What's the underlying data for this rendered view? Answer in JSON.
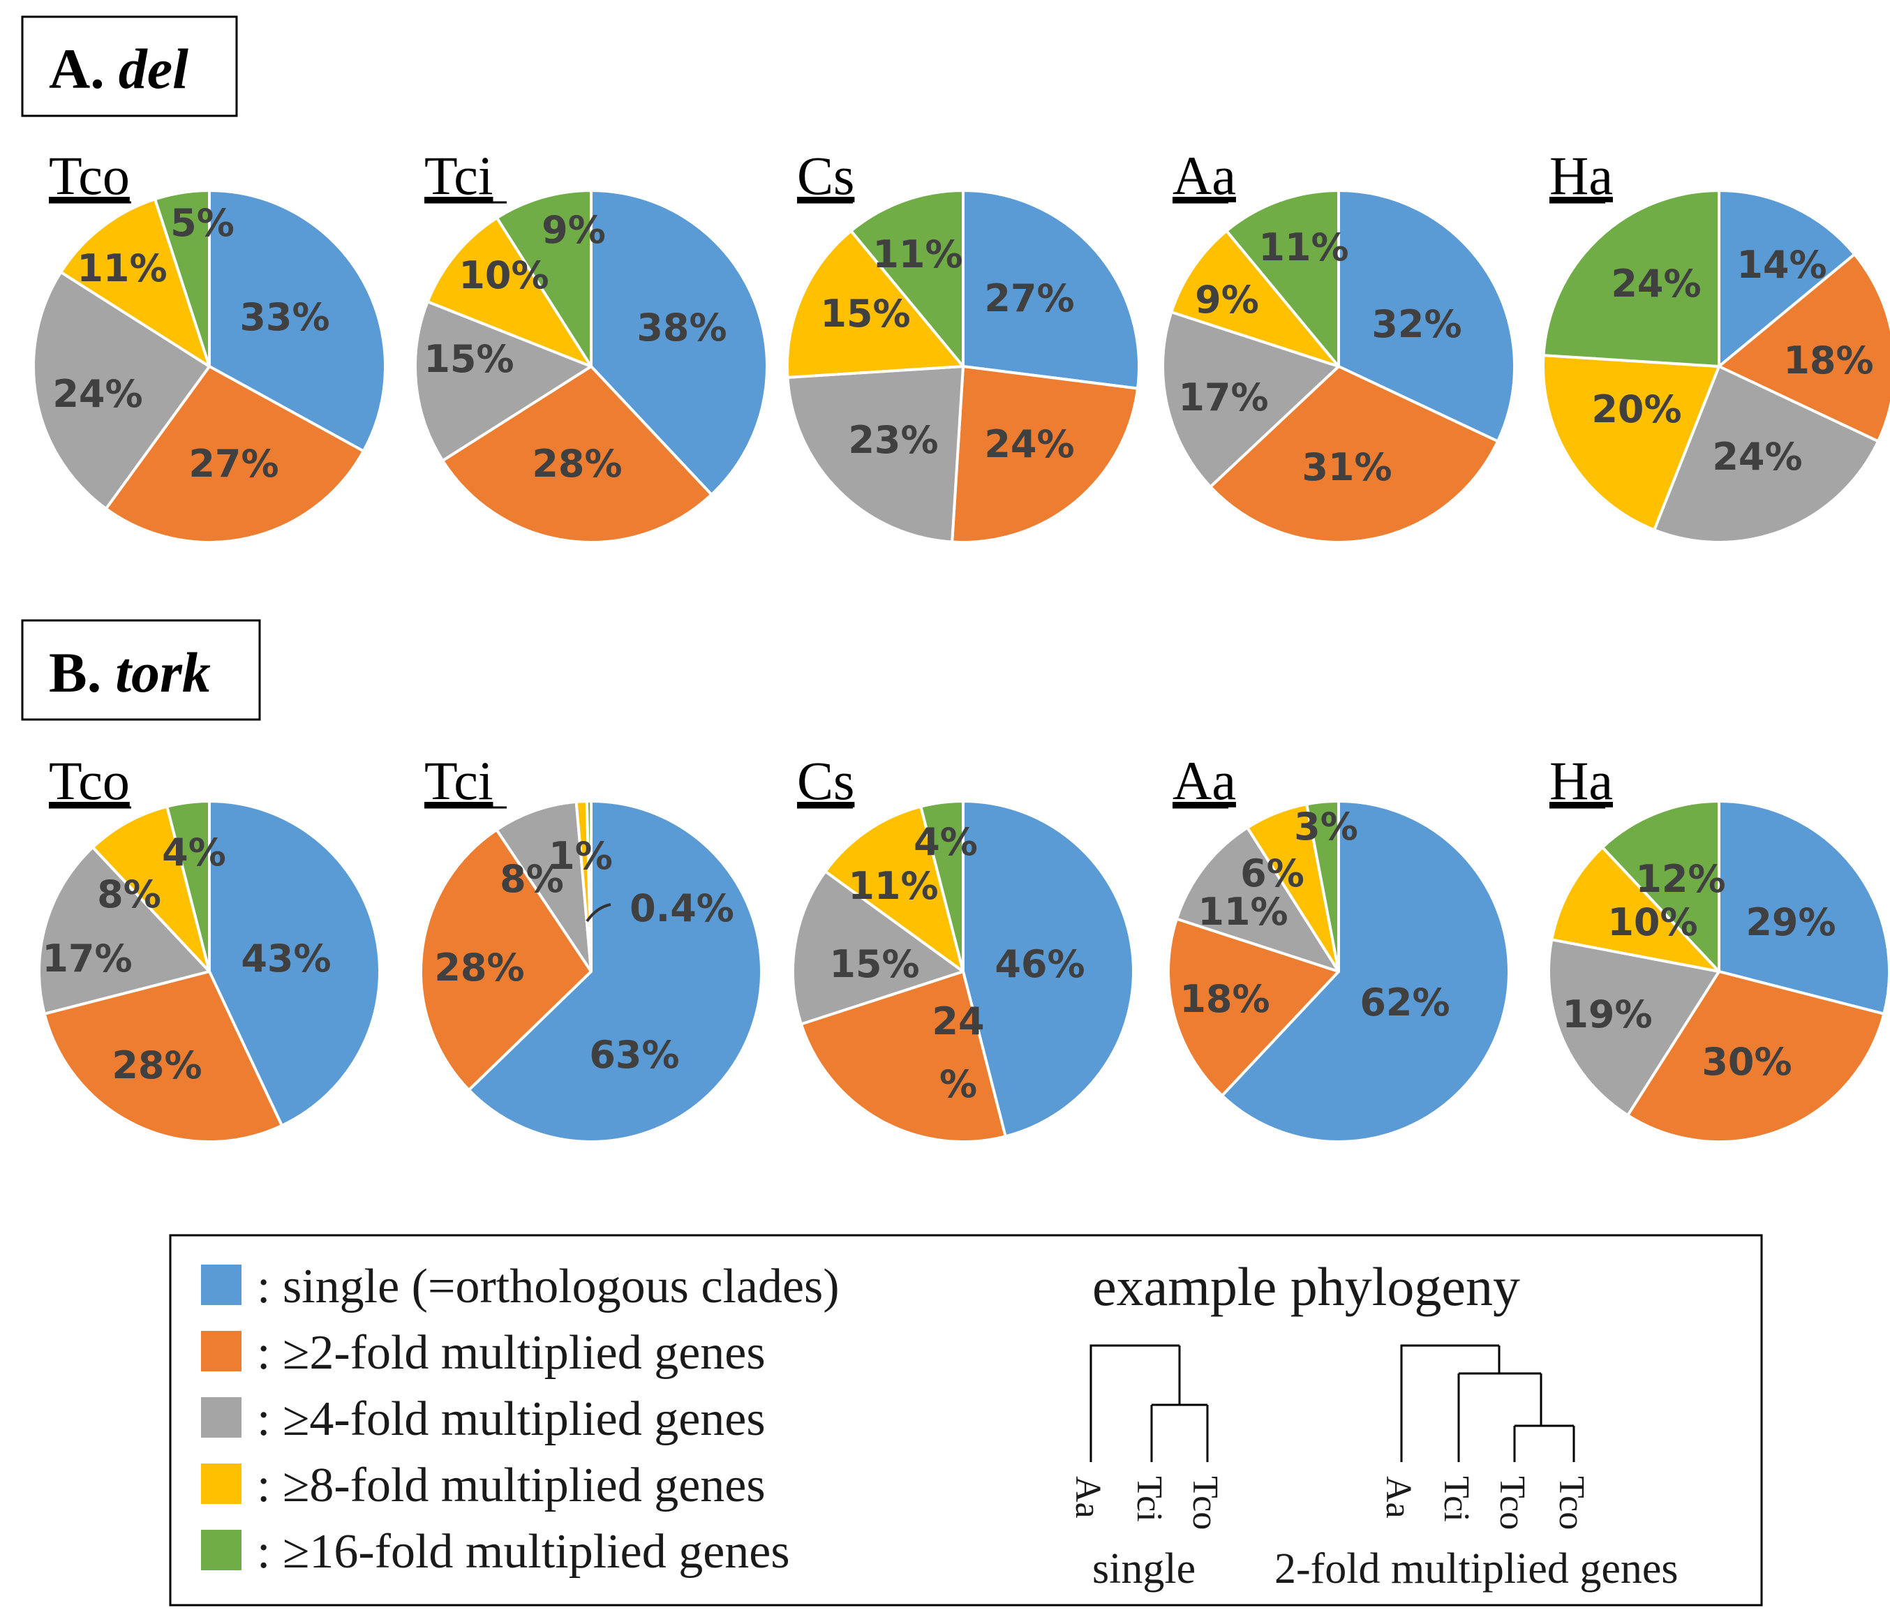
{
  "colors": {
    "single": "#5B9BD5",
    "two_fold": "#ED7D31",
    "four_fold": "#A5A5A5",
    "eight_fold": "#FFC000",
    "sixteen_fold": "#70AD47",
    "label_text": "#404040",
    "slice_border": "#ffffff",
    "frame": "#000000"
  },
  "panels": {
    "del": {
      "letter": "A.",
      "gene": "del"
    },
    "tork": {
      "letter": "B.",
      "gene": "tork"
    }
  },
  "legend": {
    "items": [
      {
        "key": "single",
        "text": ": single (=orthologous clades)"
      },
      {
        "key": "two_fold",
        "text": ": ≥2-fold multiplied genes"
      },
      {
        "key": "four_fold",
        "text": ": ≥4-fold multiplied genes"
      },
      {
        "key": "eight_fold",
        "text": ": ≥8-fold multiplied genes"
      },
      {
        "key": "sixteen_fold",
        "text": ": ≥16-fold multiplied genes"
      }
    ],
    "phylogeny_title": "example phylogeny",
    "tree_single": {
      "leaves": [
        "Aa",
        "Tci",
        "Tco"
      ],
      "caption": "single"
    },
    "tree_multi": {
      "leaves": [
        "Aa",
        "Tci",
        "Tco",
        "Tco"
      ],
      "caption": "2-fold multiplied genes"
    }
  },
  "chart_data": [
    {
      "type": "pie",
      "panel": "del",
      "title": "Tco",
      "categories": [
        "single",
        "≥2-fold",
        "≥4-fold",
        "≥8-fold",
        "≥16-fold"
      ],
      "values": [
        33,
        27,
        24,
        11,
        5
      ],
      "labels": [
        "33%",
        "27%",
        "24%",
        "11%",
        "5%"
      ]
    },
    {
      "type": "pie",
      "panel": "del",
      "title": "Tci",
      "categories": [
        "single",
        "≥2-fold",
        "≥4-fold",
        "≥8-fold",
        "≥16-fold"
      ],
      "values": [
        38,
        28,
        15,
        10,
        9
      ],
      "labels": [
        "38%",
        "28%",
        "15%",
        "10%",
        "9%"
      ]
    },
    {
      "type": "pie",
      "panel": "del",
      "title": "Cs",
      "categories": [
        "single",
        "≥2-fold",
        "≥4-fold",
        "≥8-fold",
        "≥16-fold"
      ],
      "values": [
        27,
        24,
        23,
        15,
        11
      ],
      "labels": [
        "27%",
        "24%",
        "23%",
        "15%",
        "11%"
      ]
    },
    {
      "type": "pie",
      "panel": "del",
      "title": "Aa",
      "categories": [
        "single",
        "≥2-fold",
        "≥4-fold",
        "≥8-fold",
        "≥16-fold"
      ],
      "values": [
        32,
        31,
        17,
        9,
        11
      ],
      "labels": [
        "32%",
        "31%",
        "17%",
        "9%",
        "11%"
      ]
    },
    {
      "type": "pie",
      "panel": "del",
      "title": "Ha",
      "categories": [
        "single",
        "≥2-fold",
        "≥4-fold",
        "≥8-fold",
        "≥16-fold"
      ],
      "values": [
        14,
        18,
        24,
        20,
        24
      ],
      "labels": [
        "14%",
        "18%",
        "24%",
        "20%",
        "24%"
      ]
    },
    {
      "type": "pie",
      "panel": "tork",
      "title": "Tco",
      "categories": [
        "single",
        "≥2-fold",
        "≥4-fold",
        "≥8-fold",
        "≥16-fold"
      ],
      "values": [
        43,
        28,
        17,
        8,
        4
      ],
      "labels": [
        "43%",
        "28%",
        "17%",
        "8%",
        "4%"
      ]
    },
    {
      "type": "pie",
      "panel": "tork",
      "title": "Tci",
      "categories": [
        "single",
        "≥2-fold",
        "≥4-fold",
        "≥8-fold",
        "≥16-fold"
      ],
      "values": [
        63,
        28,
        8,
        1,
        0.4
      ],
      "labels": [
        "63%",
        "28%",
        "8%",
        "1%",
        "0.4%"
      ]
    },
    {
      "type": "pie",
      "panel": "tork",
      "title": "Cs",
      "categories": [
        "single",
        "≥2-fold",
        "≥4-fold",
        "≥8-fold",
        "≥16-fold"
      ],
      "values": [
        46,
        24,
        15,
        11,
        4
      ],
      "labels": [
        "46%",
        "24%",
        "15%",
        "11%",
        "4%"
      ]
    },
    {
      "type": "pie",
      "panel": "tork",
      "title": "Aa",
      "categories": [
        "single",
        "≥2-fold",
        "≥4-fold",
        "≥8-fold",
        "≥16-fold"
      ],
      "values": [
        62,
        18,
        11,
        6,
        3
      ],
      "labels": [
        "62%",
        "18%",
        "11%",
        "6%",
        "3%"
      ]
    },
    {
      "type": "pie",
      "panel": "tork",
      "title": "Ha",
      "categories": [
        "single",
        "≥2-fold",
        "≥4-fold",
        "≥8-fold",
        "≥16-fold"
      ],
      "values": [
        29,
        30,
        19,
        10,
        12
      ],
      "labels": [
        "29%",
        "30%",
        "19%",
        "10%",
        "12%"
      ]
    }
  ]
}
